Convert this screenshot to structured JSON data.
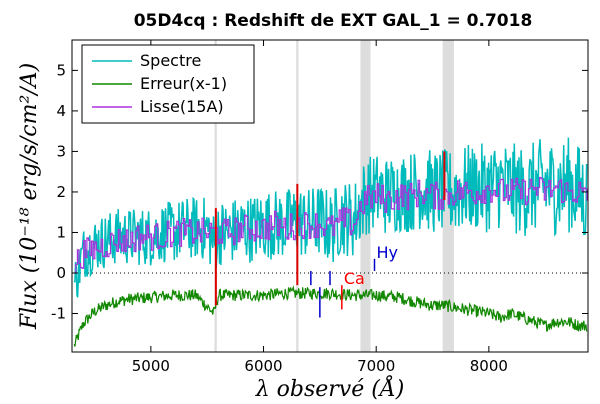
{
  "chart_data": {
    "type": "line",
    "title": "05D4cq : Redshift de EXT GAL_1 = 0.7018",
    "xlabel": "λ observé (Å)",
    "ylabel": "Flux (10⁻¹⁸ erg/s/cm²/A)",
    "xlim": [
      4300,
      8880
    ],
    "ylim": [
      -1.95,
      5.75
    ],
    "x_ticks": [
      5000,
      6000,
      7000,
      8000
    ],
    "y_ticks": [
      -1,
      0,
      1,
      2,
      3,
      4,
      5
    ],
    "x_tick_labels": [
      "5000",
      "6000",
      "7000",
      "8000"
    ],
    "y_tick_labels": [
      "-1",
      "0",
      "1",
      "2",
      "3",
      "4",
      "5"
    ],
    "grid": false,
    "legend_position": "top-left",
    "series": [
      {
        "name": "Spectre",
        "color": "#00bbbb",
        "x": [
          4320,
          4400,
          4500,
          4600,
          4700,
          4800,
          4900,
          5000,
          5100,
          5200,
          5300,
          5400,
          5500,
          5560,
          5600,
          5700,
          5800,
          5900,
          6000,
          6100,
          6200,
          6300,
          6400,
          6500,
          6600,
          6700,
          6800,
          6850,
          6900,
          7000,
          7100,
          7200,
          7300,
          7400,
          7500,
          7600,
          7700,
          7800,
          7900,
          8000,
          8100,
          8200,
          8300,
          8400,
          8500,
          8600,
          8700,
          8800,
          8870
        ],
        "y": [
          -0.3,
          0.5,
          0.7,
          0.8,
          0.9,
          0.9,
          0.9,
          0.9,
          1.0,
          1.0,
          1.1,
          1.1,
          1.1,
          0.7,
          1.0,
          1.0,
          1.1,
          1.1,
          1.2,
          1.2,
          1.2,
          1.3,
          1.2,
          1.3,
          1.1,
          1.4,
          1.3,
          1.6,
          1.9,
          2.0,
          1.9,
          2.0,
          2.0,
          2.1,
          2.0,
          2.0,
          2.0,
          2.1,
          2.1,
          2.1,
          2.2,
          2.1,
          2.0,
          2.1,
          2.2,
          2.1,
          2.2,
          2.0,
          1.8
        ],
        "noise_amplitude": 1.1
      },
      {
        "name": "Erreur(x-1)",
        "color": "#118800",
        "x": [
          4320,
          4400,
          4500,
          4600,
          4700,
          4800,
          5000,
          5200,
          5400,
          5560,
          5600,
          5800,
          6000,
          6200,
          6400,
          6600,
          6800,
          7000,
          7200,
          7400,
          7500,
          7600,
          7700,
          7800,
          7900,
          8000,
          8100,
          8200,
          8300,
          8400,
          8500,
          8600,
          8700,
          8800,
          8870
        ],
        "y": [
          -1.8,
          -1.25,
          -0.95,
          -0.8,
          -0.7,
          -0.65,
          -0.6,
          -0.55,
          -0.55,
          -1.0,
          -0.55,
          -0.55,
          -0.55,
          -0.5,
          -0.5,
          -0.5,
          -0.55,
          -0.55,
          -0.6,
          -0.75,
          -0.8,
          -0.8,
          -0.85,
          -0.9,
          -0.95,
          -1.0,
          -1.1,
          -1.0,
          -1.1,
          -1.2,
          -1.3,
          -1.2,
          -1.2,
          -1.3,
          -1.3
        ],
        "noise_amplitude": 0.15
      },
      {
        "name": "Lisse(15A)",
        "color": "#aa33dd",
        "x": [
          4320,
          4400,
          4500,
          4600,
          4700,
          4800,
          4900,
          5000,
          5100,
          5200,
          5300,
          5400,
          5500,
          5600,
          5700,
          5800,
          5900,
          6000,
          6100,
          6200,
          6300,
          6400,
          6500,
          6600,
          6700,
          6800,
          6850,
          6900,
          7000,
          7100,
          7200,
          7300,
          7400,
          7500,
          7600,
          7700,
          7800,
          7900,
          8000,
          8100,
          8200,
          8300,
          8400,
          8500,
          8600,
          8700,
          8800,
          8870
        ],
        "y": [
          0.2,
          0.5,
          0.6,
          0.7,
          0.8,
          0.8,
          0.9,
          0.9,
          0.9,
          1.0,
          1.0,
          1.0,
          1.0,
          1.0,
          1.0,
          1.1,
          1.1,
          1.1,
          1.2,
          1.1,
          1.2,
          1.2,
          1.2,
          1.1,
          1.3,
          1.2,
          1.6,
          1.8,
          1.9,
          1.8,
          1.9,
          1.9,
          2.0,
          1.9,
          1.9,
          2.0,
          2.0,
          2.0,
          2.1,
          2.0,
          2.0,
          2.0,
          2.1,
          2.0,
          2.1,
          2.0,
          2.0,
          1.8
        ],
        "noise_amplitude": 0.35
      }
    ],
    "zero_line": 0,
    "shaded_bands": [
      {
        "x1": 5565,
        "x2": 5585,
        "color": "#dddddd"
      },
      {
        "x1": 6290,
        "x2": 6310,
        "color": "#dddddd"
      },
      {
        "x1": 6860,
        "x2": 6950,
        "color": "#dddddd"
      },
      {
        "x1": 7590,
        "x2": 7690,
        "color": "#dddddd"
      }
    ],
    "red_markers": [
      {
        "x": 5577,
        "y1": -0.8,
        "y2": 1.6
      },
      {
        "x": 6300,
        "y1": -0.3,
        "y2": 2.2
      },
      {
        "x": 7605,
        "y1": 1.8,
        "y2": 3.0
      }
    ],
    "annotations": [
      {
        "label": "",
        "x": 6420,
        "y1": -0.3,
        "y2": 0.05,
        "color": "#0000cc"
      },
      {
        "label": "",
        "x": 6500,
        "y1": -1.1,
        "y2": -0.35,
        "color": "#0000cc"
      },
      {
        "label": "",
        "x": 6590,
        "y1": -0.3,
        "y2": 0.05,
        "color": "#0000cc"
      },
      {
        "label": "Hy",
        "x": 6985,
        "y1": 0.05,
        "y2": 0.35,
        "color": "#0000cc"
      },
      {
        "label": "Ca",
        "x": 6695,
        "y1": -0.9,
        "y2": -0.3,
        "color": "#ff0000"
      }
    ]
  }
}
